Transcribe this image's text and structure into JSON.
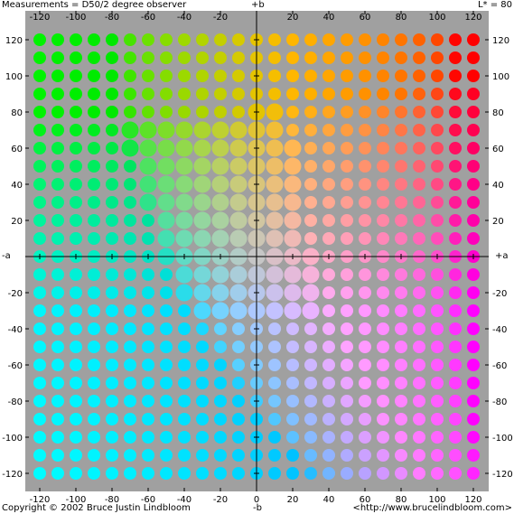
{
  "header": {
    "measurements": "Measurements = D50/2 degree observer",
    "lightness": "L* = 80"
  },
  "footer": {
    "copyright": "Copyright © 2002 Bruce Justin Lindbloom",
    "url": "<http://www.brucelindbloom.com>"
  },
  "chart_data": {
    "type": "scatter",
    "title": "",
    "lightness_L": 80,
    "axis_labels": {
      "plus_b": "+b",
      "minus_b": "-b",
      "minus_a": "-a",
      "plus_a": "+a"
    },
    "x_axis": {
      "quantity": "a*",
      "range": [
        -130,
        130
      ],
      "ticks": [
        -120,
        -100,
        -80,
        -60,
        -40,
        -20,
        0,
        20,
        40,
        60,
        80,
        100,
        120
      ]
    },
    "y_axis": {
      "quantity": "b*",
      "range": [
        -130,
        130
      ],
      "ticks": [
        -120,
        -100,
        -80,
        -60,
        -40,
        -20,
        0,
        20,
        40,
        60,
        80,
        100,
        120
      ]
    },
    "grid": {
      "a_values": [
        -120,
        120,
        10
      ],
      "b_values": [
        -120,
        120,
        10
      ],
      "note": "one dot per (a*, b*) pair at 10-unit steps"
    },
    "background_color": "#a0a0a0",
    "axis_color": "#000000"
  }
}
